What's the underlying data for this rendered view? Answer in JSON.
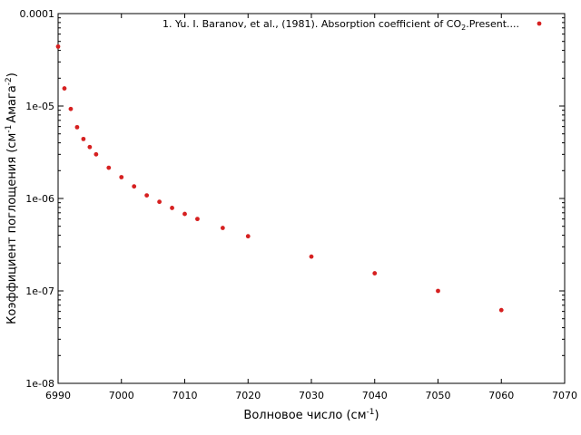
{
  "chart_data": {
    "type": "scatter",
    "xlabel": {
      "text": "Волновое число (см",
      "sup": "-1",
      "tail": ")"
    },
    "ylabel": {
      "text": "Коэффициент поглощения (см",
      "sup1": "-1",
      "mid": "Амага",
      "sup2": "-2",
      "tail": ")"
    },
    "xlim": [
      6990,
      7070
    ],
    "ylim": [
      1e-08,
      0.0001
    ],
    "yscale": "log",
    "grid": false,
    "legend_position": "top-right",
    "xticks": [
      {
        "value": 6990,
        "label": "6990"
      },
      {
        "value": 7000,
        "label": "7000"
      },
      {
        "value": 7010,
        "label": "7010"
      },
      {
        "value": 7020,
        "label": "7020"
      },
      {
        "value": 7030,
        "label": "7030"
      },
      {
        "value": 7040,
        "label": "7040"
      },
      {
        "value": 7050,
        "label": "7050"
      },
      {
        "value": 7060,
        "label": "7060"
      },
      {
        "value": 7070,
        "label": "7070"
      }
    ],
    "yticks": [
      {
        "value": 0.0001,
        "label": "0.0001"
      },
      {
        "value": 1e-05,
        "label": "1e-05"
      },
      {
        "value": 1e-06,
        "label": "1e-06"
      },
      {
        "value": 1e-07,
        "label": "1e-07"
      },
      {
        "value": 1e-08,
        "label": "1e-08"
      }
    ],
    "series": [
      {
        "name": "1. Yu. I. Baranov, et al., (1981). Absorption coefficient of CO",
        "name_sub": "2",
        "name_tail": ".Present....",
        "color": "#d62020",
        "points": [
          {
            "x": 6990,
            "y": 4.4e-05
          },
          {
            "x": 6991,
            "y": 1.55e-05
          },
          {
            "x": 6992,
            "y": 9.3e-06
          },
          {
            "x": 6993,
            "y": 5.9e-06
          },
          {
            "x": 6994,
            "y": 4.4e-06
          },
          {
            "x": 6995,
            "y": 3.6e-06
          },
          {
            "x": 6996,
            "y": 3e-06
          },
          {
            "x": 6998,
            "y": 2.15e-06
          },
          {
            "x": 7000,
            "y": 1.7e-06
          },
          {
            "x": 7002,
            "y": 1.35e-06
          },
          {
            "x": 7004,
            "y": 1.08e-06
          },
          {
            "x": 7006,
            "y": 9.2e-07
          },
          {
            "x": 7008,
            "y": 7.9e-07
          },
          {
            "x": 7010,
            "y": 6.8e-07
          },
          {
            "x": 7012,
            "y": 6e-07
          },
          {
            "x": 7016,
            "y": 4.8e-07
          },
          {
            "x": 7020,
            "y": 3.9e-07
          },
          {
            "x": 7030,
            "y": 2.35e-07
          },
          {
            "x": 7040,
            "y": 1.55e-07
          },
          {
            "x": 7050,
            "y": 1e-07
          },
          {
            "x": 7060,
            "y": 6.2e-08
          }
        ]
      }
    ]
  }
}
